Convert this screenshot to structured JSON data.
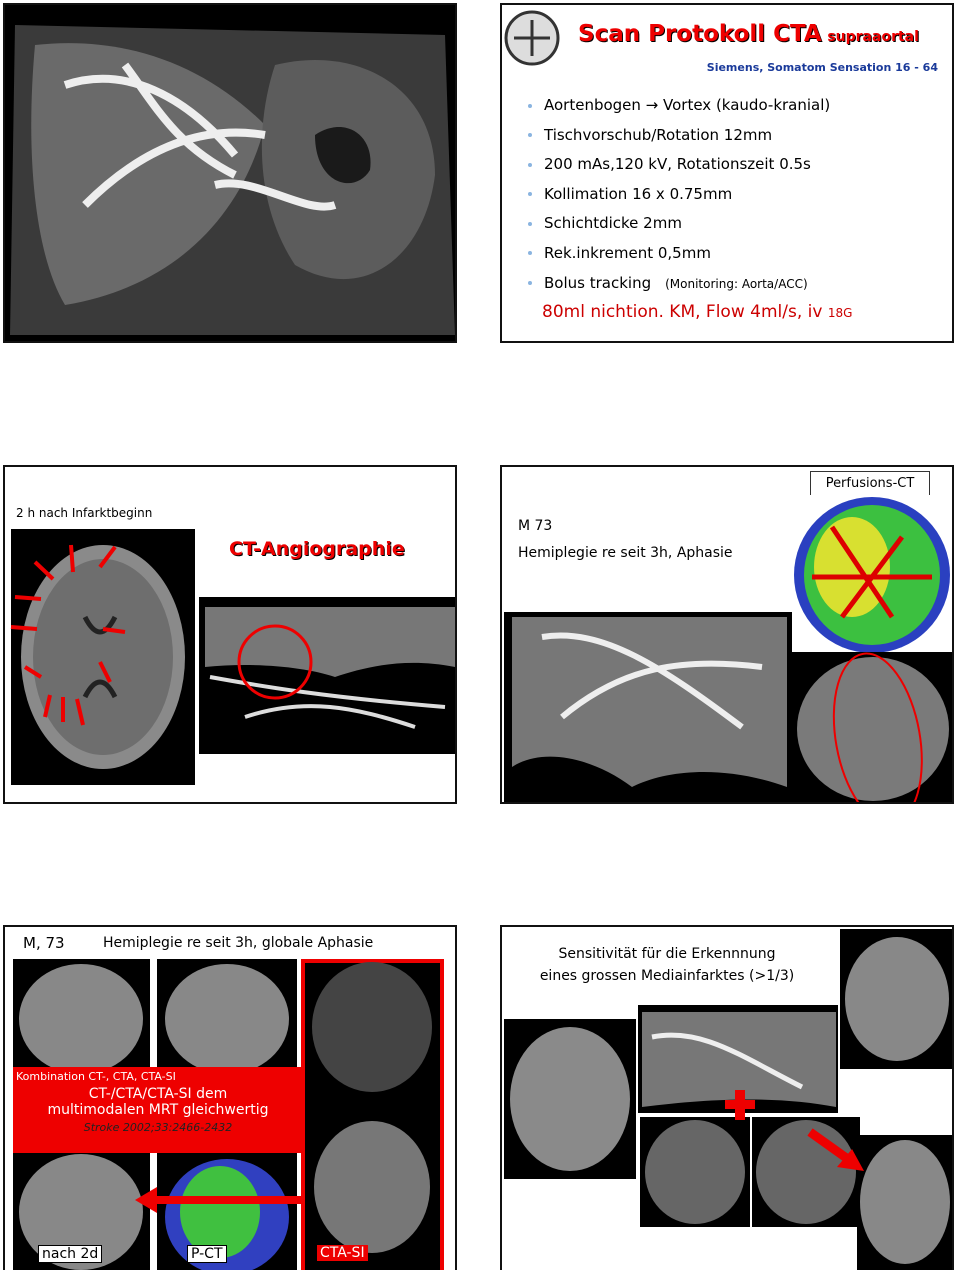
{
  "slides": [
    {
      "id": "angio-image"
    },
    {
      "title": {
        "main": "Scan Protokoll CTA",
        "suffix": "supraaortal"
      },
      "subtitle": "Siemens, Somatom Sensation 16 - 64",
      "bullets": [
        "Aortenbogen → Vortex (kaudo-kranial)",
        "Tischvorschub/Rotation 12mm",
        "200 mAs,120 kV, Rotationszeit 0.5s",
        "Kollimation 16 x 0.75mm",
        "Schichtdicke 2mm",
        "Rek.inkrement 0,5mm",
        "Bolus tracking"
      ],
      "bullet_note": "(Monitoring: Aorta/ACC)",
      "contrast": {
        "main": "80ml nichtion. KM, Flow 4ml/s, iv",
        "suffix": "18G"
      }
    },
    {
      "caption": "2 h nach Infarktbeginn",
      "heading": "CT-Angiographie"
    },
    {
      "patient": "M 73",
      "history": "Hemiplegie re seit 3h, Aphasie",
      "perfusion_label": "Perfusions-CT"
    },
    {
      "patient": "M, 73",
      "history": "Hemiplegie re seit 3h, globale Aphasie",
      "box": {
        "line1": "Kombination CT-, CTA, CTA-SI",
        "line2": "CT-/CTA/CTA-SI dem",
        "line3": "multimodalen MRT gleichwertig",
        "reference": "Stroke 2002;33:2466-2432"
      },
      "labels": [
        "nach 2d",
        "P-CT",
        "CTA-SI"
      ]
    },
    {
      "text": [
        "Sensitivität für die Erkennnung",
        "eines grossen Mediainfarktes (>1/3)"
      ]
    }
  ]
}
